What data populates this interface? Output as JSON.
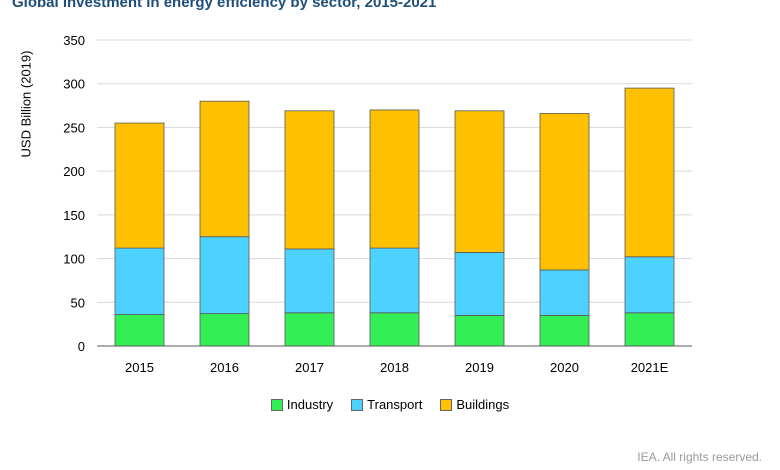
{
  "chart_data": {
    "type": "bar",
    "stacked": true,
    "title": "Global investment in energy efficiency by sector, 2015-2021",
    "ylabel": "USD Billion (2019)",
    "xlabel": "",
    "ylim": [
      0,
      350
    ],
    "yticks": [
      0,
      50,
      100,
      150,
      200,
      250,
      300,
      350
    ],
    "grid": true,
    "legend_position": "bottom",
    "categories": [
      "2015",
      "2016",
      "2017",
      "2018",
      "2019",
      "2020",
      "2021E"
    ],
    "series": [
      {
        "name": "Industry",
        "color": "#33ee55",
        "values": [
          36,
          37,
          38,
          38,
          35,
          35,
          38
        ]
      },
      {
        "name": "Transport",
        "color": "#4dd2ff",
        "values": [
          76,
          88,
          73,
          74,
          72,
          52,
          64
        ]
      },
      {
        "name": "Buildings",
        "color": "#ffc000",
        "values": [
          143,
          155,
          158,
          158,
          162,
          179,
          193
        ]
      }
    ]
  },
  "footer": "IEA. All rights reserved."
}
